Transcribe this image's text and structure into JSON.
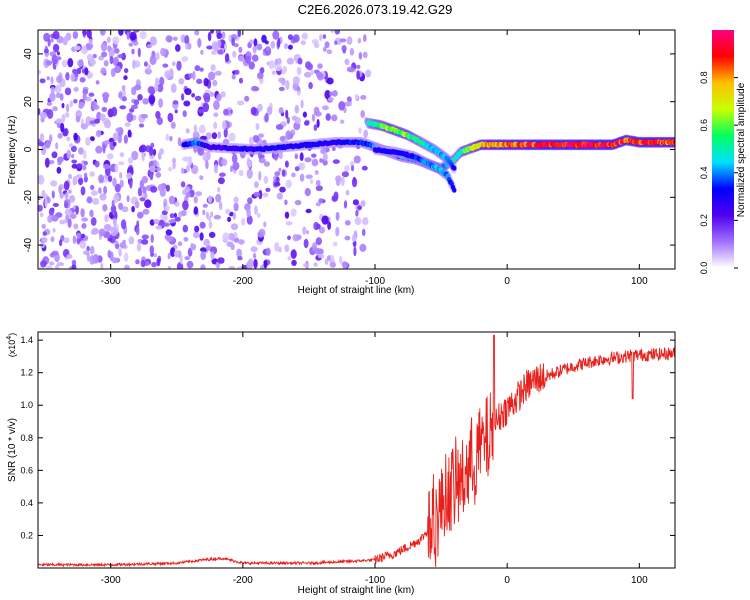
{
  "title": "C2E6.2026.073.19.42.G29",
  "chart_data": [
    {
      "type": "heatmap",
      "name": "spectrogram",
      "xlabel": "Height of straight line (km)",
      "ylabel": "Frequency (Hz)",
      "xlim": [
        -355,
        127
      ],
      "ylim": [
        -50,
        50
      ],
      "x_ticks": [
        -300,
        -200,
        -100,
        0,
        100
      ],
      "x_tick_labels": [
        "-300",
        "-200",
        "-100",
        "0",
        "100"
      ],
      "y_ticks": [
        40,
        20,
        0,
        -20,
        -40
      ],
      "y_tick_labels": [
        "40",
        "20",
        "0",
        "-20",
        "-40"
      ],
      "colorbar": {
        "label": "Normalized spectral amplitude",
        "range": [
          0,
          1
        ],
        "ticks": [
          0.0,
          0.2,
          0.4,
          0.6,
          0.8
        ],
        "tick_labels": [
          "0.0",
          "0.2",
          "0.4",
          "0.6",
          "0.8"
        ],
        "colors": [
          "#ffffff",
          "#a070ff",
          "#5000ee",
          "#0000ff",
          "#00e0ff",
          "#00ff60",
          "#c8ff00",
          "#ffc000",
          "#ff0000",
          "#ff0080"
        ]
      },
      "noise_region_x": [
        -355,
        -105
      ],
      "tracks": [
        {
          "name": "main-track",
          "x": [
            -245,
            -235,
            -225,
            -190,
            -170,
            -150,
            -130,
            -110,
            -100,
            -90,
            -80,
            -70,
            -60,
            -50,
            -40,
            -35,
            -30,
            -20,
            -10,
            0,
            20,
            40,
            60,
            80,
            90,
            100,
            127
          ],
          "freq": [
            2,
            3,
            1,
            0,
            1,
            2,
            3,
            3,
            1,
            -1,
            -3,
            -4,
            -6,
            -8,
            -4,
            -1,
            0,
            2,
            2,
            2,
            2,
            2,
            2,
            2,
            4,
            3,
            3
          ],
          "level": [
            0.3,
            0.4,
            0.25,
            0.3,
            0.3,
            0.3,
            0.3,
            0.35,
            0.4,
            0.4,
            0.4,
            0.4,
            0.4,
            0.4,
            0.5,
            0.55,
            0.6,
            0.75,
            0.8,
            0.85,
            0.9,
            0.95,
            0.95,
            0.95,
            0.9,
            0.9,
            0.9
          ]
        },
        {
          "name": "upper-track",
          "x": [
            -105,
            -95,
            -85,
            -75,
            -65,
            -55,
            -45,
            -40
          ],
          "freq": [
            11,
            10,
            8,
            6,
            3,
            0,
            -4,
            -8
          ],
          "level": [
            0.5,
            0.6,
            0.65,
            0.6,
            0.5,
            0.45,
            0.4,
            0.3
          ]
        },
        {
          "name": "lower-track",
          "x": [
            -100,
            -85,
            -70,
            -60,
            -52,
            -45,
            -40
          ],
          "freq": [
            0,
            -1,
            -3,
            -6,
            -8,
            -11,
            -17
          ],
          "level": [
            0.3,
            0.3,
            0.35,
            0.4,
            0.45,
            0.4,
            0.3
          ]
        }
      ]
    },
    {
      "type": "line",
      "name": "snr",
      "xlabel": "Height of straight line (km)",
      "ylabel": "SNR (10 * v/v)",
      "y_multiplier": "(x10",
      "y_multiplier_exp": "4",
      "y_multiplier_close": ")",
      "xlim": [
        -355,
        127
      ],
      "ylim": [
        0,
        1.45
      ],
      "x_ticks": [
        -300,
        -200,
        -100,
        0,
        100
      ],
      "x_tick_labels": [
        "-300",
        "-200",
        "-100",
        "0",
        "100"
      ],
      "y_ticks": [
        0.2,
        0.4,
        0.6,
        0.8,
        1.0,
        1.2,
        1.4
      ],
      "y_tick_labels": [
        "0.2",
        "0.4",
        "0.6",
        "0.8",
        "1.0",
        "1.2",
        "1.4"
      ],
      "color": "#e8201c",
      "series": [
        {
          "name": "SNR",
          "x": [
            -355,
            -300,
            -250,
            -230,
            -215,
            -200,
            -150,
            -120,
            -100,
            -85,
            -75,
            -65,
            -58,
            -52,
            -48,
            -44,
            -40,
            -36,
            -32,
            -28,
            -24,
            -20,
            -16,
            -12,
            -8,
            -4,
            0,
            5,
            10,
            15,
            20,
            25,
            30,
            40,
            50,
            60,
            70,
            80,
            90,
            100,
            110,
            127
          ],
          "y": [
            0.02,
            0.02,
            0.03,
            0.05,
            0.06,
            0.03,
            0.03,
            0.04,
            0.05,
            0.09,
            0.13,
            0.18,
            0.25,
            0.33,
            0.42,
            0.48,
            0.5,
            0.52,
            0.58,
            0.62,
            0.68,
            0.75,
            0.78,
            0.82,
            0.9,
            0.95,
            0.98,
            1.02,
            1.07,
            1.12,
            1.15,
            1.17,
            1.18,
            1.21,
            1.24,
            1.26,
            1.28,
            1.29,
            1.3,
            1.31,
            1.31,
            1.32
          ]
        }
      ]
    }
  ]
}
